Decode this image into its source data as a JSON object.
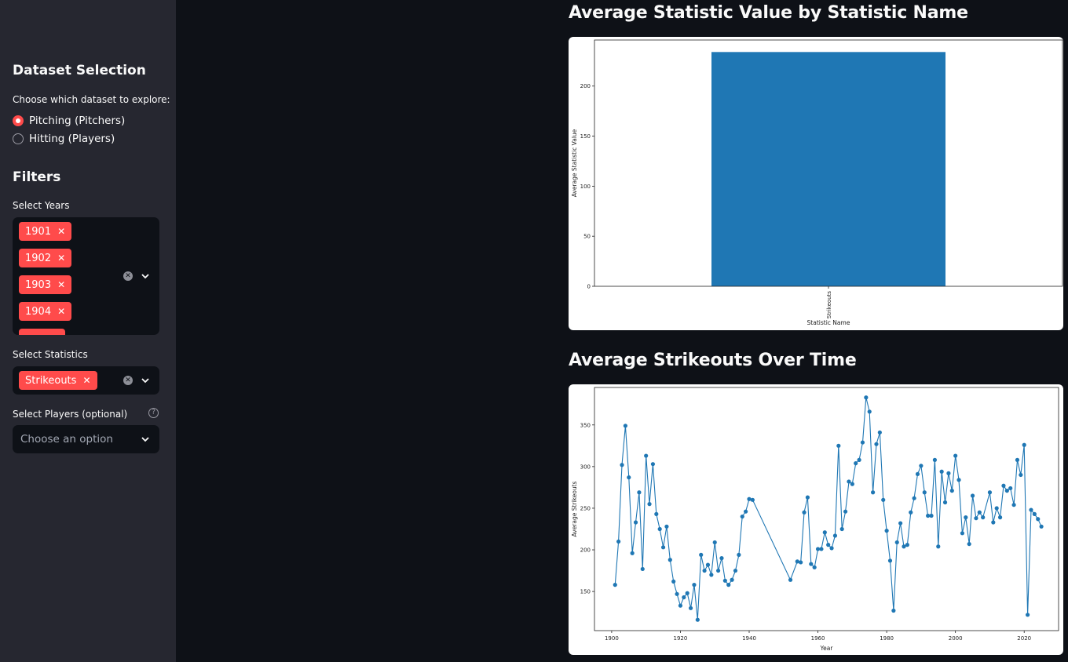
{
  "sidebar": {
    "dataset_heading": "Dataset Selection",
    "dataset_prompt": "Choose which dataset to explore:",
    "dataset_options": [
      {
        "label": "Pitching (Pitchers)",
        "selected": true
      },
      {
        "label": "Hitting (Players)",
        "selected": false
      }
    ],
    "filters_heading": "Filters",
    "years_label": "Select Years",
    "years_selected": [
      "1901",
      "1902",
      "1903",
      "1904"
    ],
    "stats_label": "Select Statistics",
    "stats_selected": [
      "Strikeouts"
    ],
    "players_label": "Select Players (optional)",
    "players_placeholder": "Choose an option"
  },
  "colors": {
    "accent": "#ff4b4b",
    "series": "#1f77b4",
    "background": "#0e1117",
    "sidebar": "#262730"
  },
  "main": {
    "chart1_title": "Average Statistic Value by Statistic Name",
    "chart2_title": "Average Strikeouts Over Time"
  },
  "chart_data": [
    {
      "type": "bar",
      "categories": [
        "Strikeouts"
      ],
      "values": [
        234
      ],
      "xlabel": "Statistic Name",
      "ylabel": "Average Statistic Value",
      "ylim": [
        0,
        246
      ],
      "yticks": [
        0,
        50,
        100,
        150,
        200
      ],
      "grid": false
    },
    {
      "type": "line",
      "xlabel": "Year",
      "ylabel": "Average Strikeouts",
      "xlim": [
        1895,
        2030
      ],
      "ylim": [
        103,
        395
      ],
      "xticks": [
        1900,
        1920,
        1940,
        1960,
        1980,
        2000,
        2020
      ],
      "yticks": [
        150,
        200,
        250,
        300,
        350
      ],
      "grid": false,
      "markers": true,
      "points": [
        [
          1901,
          158
        ],
        [
          1902,
          210
        ],
        [
          1903,
          302
        ],
        [
          1904,
          349
        ],
        [
          1905,
          287
        ],
        [
          1906,
          196
        ],
        [
          1907,
          233
        ],
        [
          1908,
          269
        ],
        [
          1909,
          177
        ],
        [
          1910,
          313
        ],
        [
          1911,
          255
        ],
        [
          1912,
          303
        ],
        [
          1913,
          243
        ],
        [
          1914,
          225
        ],
        [
          1915,
          203
        ],
        [
          1916,
          228
        ],
        [
          1917,
          188
        ],
        [
          1918,
          162
        ],
        [
          1919,
          147
        ],
        [
          1920,
          133
        ],
        [
          1921,
          143
        ],
        [
          1922,
          148
        ],
        [
          1923,
          130
        ],
        [
          1924,
          158
        ],
        [
          1925,
          116
        ],
        [
          1926,
          194
        ],
        [
          1927,
          175
        ],
        [
          1928,
          182
        ],
        [
          1929,
          170
        ],
        [
          1930,
          209
        ],
        [
          1931,
          175
        ],
        [
          1932,
          190
        ],
        [
          1933,
          163
        ],
        [
          1934,
          158
        ],
        [
          1935,
          164
        ],
        [
          1936,
          175
        ],
        [
          1937,
          194
        ],
        [
          1938,
          240
        ],
        [
          1939,
          246
        ],
        [
          1940,
          261
        ],
        [
          1941,
          260
        ],
        [
          1952,
          164
        ],
        [
          1954,
          186
        ],
        [
          1955,
          185
        ],
        [
          1956,
          245
        ],
        [
          1957,
          263
        ],
        [
          1958,
          183
        ],
        [
          1959,
          179
        ],
        [
          1960,
          201
        ],
        [
          1961,
          201
        ],
        [
          1962,
          221
        ],
        [
          1963,
          206
        ],
        [
          1964,
          202
        ],
        [
          1965,
          217
        ],
        [
          1966,
          325
        ],
        [
          1967,
          225
        ],
        [
          1968,
          246
        ],
        [
          1969,
          282
        ],
        [
          1970,
          279
        ],
        [
          1971,
          304
        ],
        [
          1972,
          308
        ],
        [
          1973,
          329
        ],
        [
          1974,
          383
        ],
        [
          1975,
          366
        ],
        [
          1976,
          269
        ],
        [
          1977,
          327
        ],
        [
          1978,
          341
        ],
        [
          1979,
          260
        ],
        [
          1980,
          223
        ],
        [
          1981,
          187
        ],
        [
          1982,
          127
        ],
        [
          1983,
          209
        ],
        [
          1984,
          232
        ],
        [
          1985,
          204
        ],
        [
          1986,
          206
        ],
        [
          1987,
          245
        ],
        [
          1988,
          262
        ],
        [
          1989,
          291
        ],
        [
          1990,
          301
        ],
        [
          1991,
          269
        ],
        [
          1992,
          241
        ],
        [
          1993,
          241
        ],
        [
          1994,
          308
        ],
        [
          1995,
          204
        ],
        [
          1996,
          294
        ],
        [
          1997,
          257
        ],
        [
          1998,
          292
        ],
        [
          1999,
          271
        ],
        [
          2000,
          313
        ],
        [
          2001,
          284
        ],
        [
          2002,
          220
        ],
        [
          2003,
          239
        ],
        [
          2004,
          207
        ],
        [
          2005,
          265
        ],
        [
          2006,
          238
        ],
        [
          2007,
          245
        ],
        [
          2008,
          239
        ],
        [
          2010,
          269
        ],
        [
          2011,
          233
        ],
        [
          2012,
          250
        ],
        [
          2013,
          239
        ],
        [
          2014,
          277
        ],
        [
          2015,
          271
        ],
        [
          2016,
          274
        ],
        [
          2017,
          254
        ],
        [
          2018,
          308
        ],
        [
          2019,
          290
        ],
        [
          2020,
          326
        ],
        [
          2021,
          122
        ],
        [
          2022,
          248
        ],
        [
          2023,
          243
        ],
        [
          2024,
          237
        ],
        [
          2025,
          228
        ]
      ]
    }
  ]
}
